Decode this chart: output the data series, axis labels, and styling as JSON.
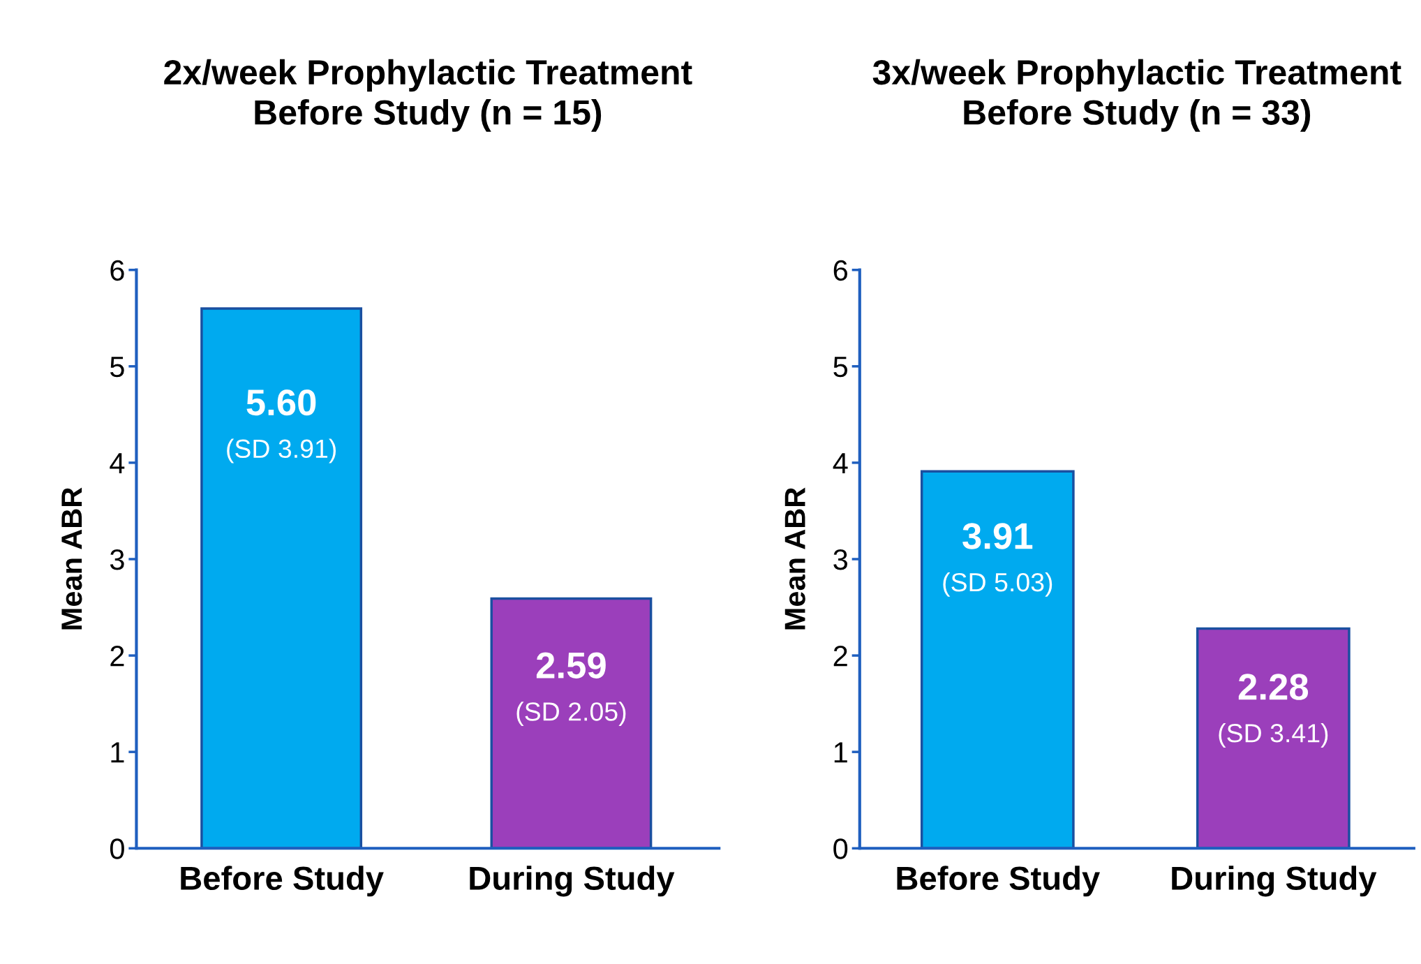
{
  "chart_data": [
    {
      "type": "bar",
      "title": "2x/week Prophylactic Treatment\nBefore Study (n = 15)",
      "ylabel": "Mean ABR",
      "categories": [
        "Before Study",
        "During Study"
      ],
      "values": [
        5.6,
        2.59
      ],
      "colors": [
        "#00aaef",
        "#9b3fbb"
      ],
      "value_labels": [
        "5.60\n(SD 3.91)",
        "2.59\n(SD 2.05)"
      ],
      "ylim": [
        0,
        6
      ],
      "yticks": [
        0,
        1,
        2,
        3,
        4,
        5,
        6
      ],
      "grid": false,
      "legend": false
    },
    {
      "type": "bar",
      "title": "3x/week Prophylactic Treatment\nBefore Study (n = 33)",
      "ylabel": "Mean ABR",
      "categories": [
        "Before Study",
        "During Study"
      ],
      "values": [
        3.91,
        2.28
      ],
      "colors": [
        "#00aaef",
        "#9b3fbb"
      ],
      "value_labels": [
        "3.91\n(SD 5.03)",
        "2.28\n(SD 3.41)"
      ],
      "ylim": [
        0,
        6
      ],
      "yticks": [
        0,
        1,
        2,
        3,
        4,
        5,
        6
      ],
      "grid": false,
      "legend": false
    }
  ]
}
